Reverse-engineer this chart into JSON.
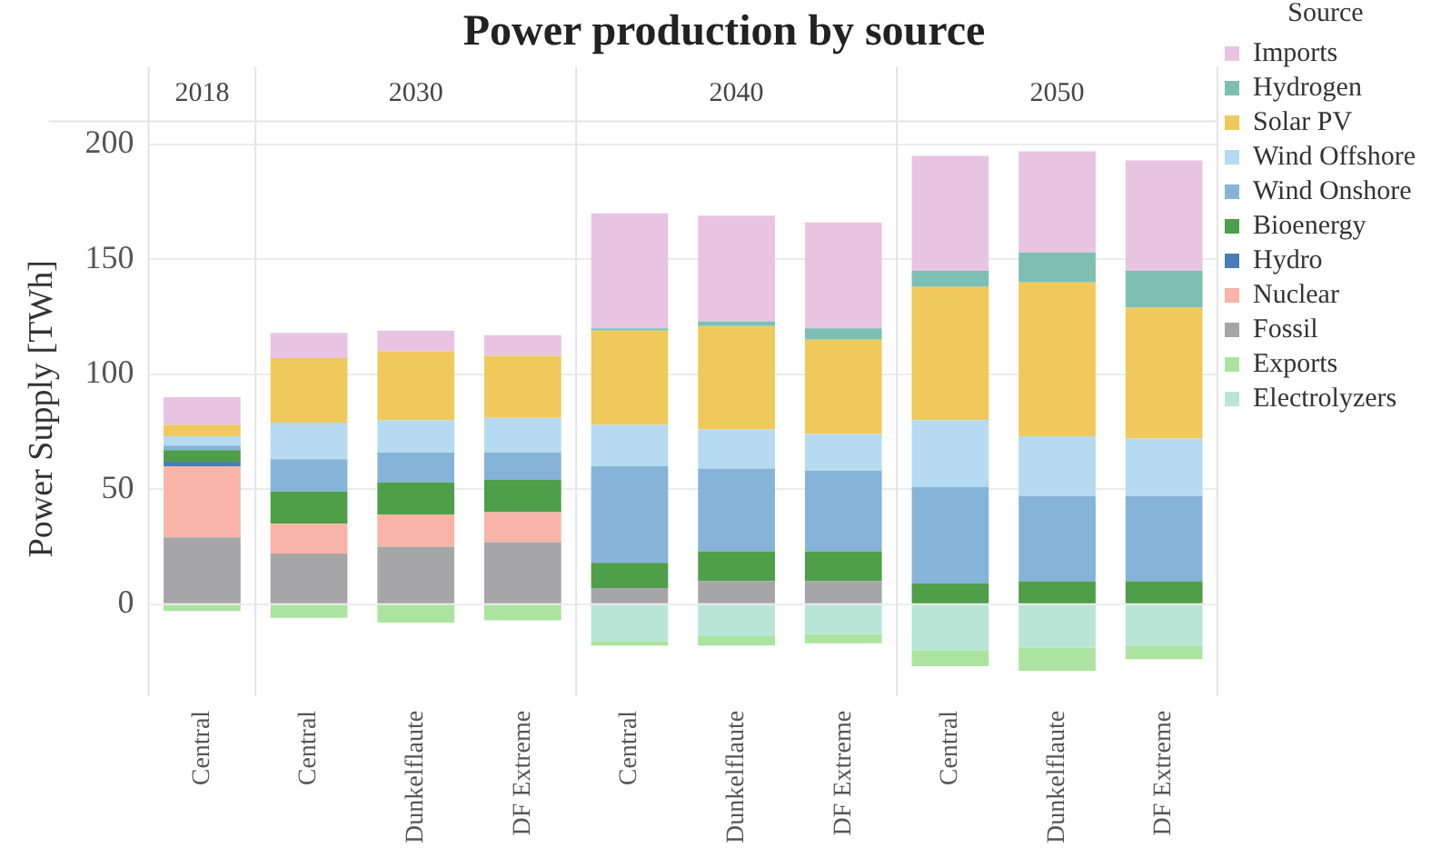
{
  "chart_data": {
    "type": "bar",
    "title": "Power production by source",
    "ylabel": "Power Supply [TWh]",
    "legend_title": "Source",
    "annotations": [
      "2018",
      "2030",
      "2040",
      "2050"
    ],
    "categories": [
      "Central",
      "Central",
      "Dunkelflaute",
      "DF Extreme",
      "Central",
      "Dunkelflaute",
      "DF Extreme",
      "Central",
      "Dunkelflaute",
      "DF Extreme"
    ],
    "stacked": true,
    "grid": "y",
    "legend": "right",
    "ylim": [
      -40,
      210
    ],
    "yticks": [
      0,
      50,
      100,
      150,
      200
    ],
    "series": [
      {
        "name": "Electrolyzers",
        "color": "#b9e5d7",
        "values": [
          0,
          0,
          0,
          0,
          -16,
          -14,
          -13,
          -20,
          -19,
          -18
        ]
      },
      {
        "name": "Exports",
        "color": "#ace3a0",
        "values": [
          -3,
          -6,
          -8,
          -7,
          -2,
          -4,
          -4,
          -7,
          -10,
          -6
        ]
      },
      {
        "name": "Fossil",
        "color": "#a6a6a8",
        "values": [
          29,
          22,
          25,
          27,
          7,
          10,
          10,
          0,
          0,
          0
        ]
      },
      {
        "name": "Nuclear",
        "color": "#f8b4a8",
        "values": [
          31,
          13,
          14,
          13,
          0,
          0,
          0,
          0,
          0,
          0
        ]
      },
      {
        "name": "Hydro",
        "color": "#4a7db5",
        "values": [
          2,
          0,
          0,
          0,
          0,
          0,
          0,
          0,
          0,
          0
        ]
      },
      {
        "name": "Bioenergy",
        "color": "#4e9e4a",
        "values": [
          5,
          14,
          14,
          14,
          11,
          13,
          13,
          9,
          10,
          10
        ]
      },
      {
        "name": "Wind Onshore",
        "color": "#86b4d8",
        "values": [
          2,
          14,
          13,
          12,
          42,
          36,
          35,
          42,
          37,
          37
        ]
      },
      {
        "name": "Wind Offshore",
        "color": "#b6dbf0",
        "values": [
          4,
          16,
          14,
          15,
          18,
          17,
          16,
          29,
          26,
          25
        ]
      },
      {
        "name": "Solar PV",
        "color": "#f0c95c",
        "values": [
          5,
          28,
          30,
          27,
          41,
          45,
          41,
          58,
          67,
          57
        ]
      },
      {
        "name": "Hydrogen",
        "color": "#7dbfb3",
        "values": [
          0,
          0,
          0,
          0,
          1,
          2,
          5,
          7,
          13,
          16
        ]
      },
      {
        "name": "Imports",
        "color": "#e8c4e2",
        "values": [
          12,
          11,
          9,
          9,
          50,
          46,
          46,
          50,
          44,
          48
        ]
      }
    ]
  }
}
